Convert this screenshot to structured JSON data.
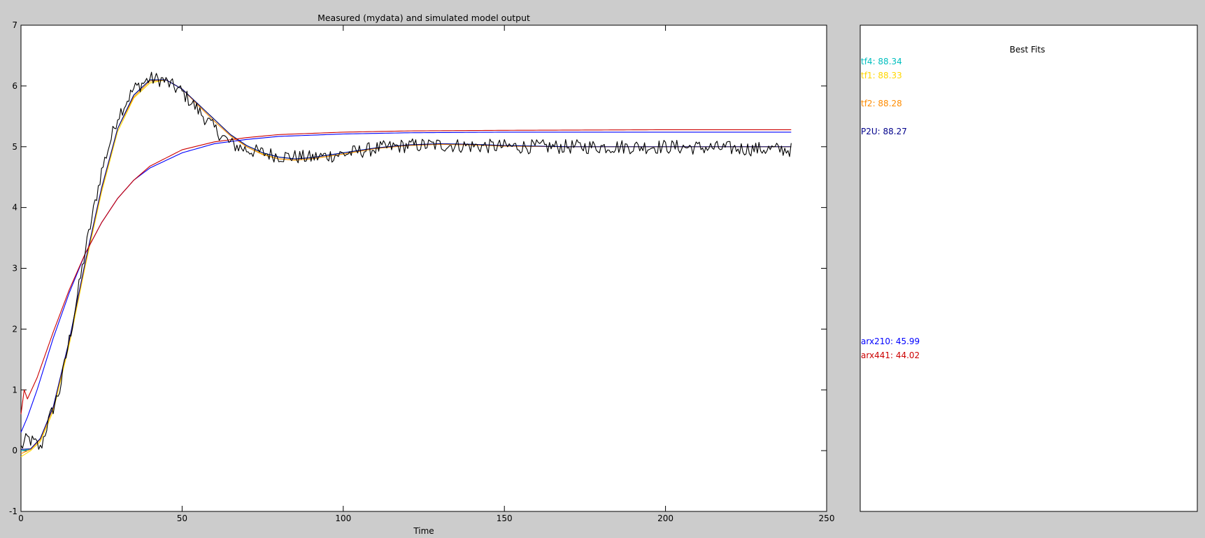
{
  "chart_data": {
    "type": "line",
    "title": "Measured (mydata) and simulated model output",
    "xlabel": "Time",
    "ylabel": "",
    "xlim": [
      0,
      250
    ],
    "ylim": [
      -1,
      7
    ],
    "x_ticks": [
      0,
      50,
      100,
      150,
      200,
      250
    ],
    "y_ticks": [
      -1,
      0,
      1,
      2,
      3,
      4,
      5,
      6,
      7
    ],
    "x_ticklabels": [
      "0",
      "50",
      "100",
      "150",
      "200",
      "250"
    ],
    "y_ticklabels": [
      "-1",
      "0",
      "1",
      "2",
      "3",
      "4",
      "5",
      "6",
      "7"
    ],
    "sample_time": 0.5,
    "t_end": 239,
    "series": [
      {
        "name": "mydata",
        "kind": "measured",
        "color": "#000000",
        "key_points": [
          [
            0,
            0.05
          ],
          [
            2,
            0.2
          ],
          [
            5,
            0.1
          ],
          [
            6,
            0.02
          ],
          [
            8,
            0.4
          ],
          [
            12,
            1.0
          ],
          [
            16,
            2.1
          ],
          [
            20,
            3.3
          ],
          [
            25,
            4.6
          ],
          [
            30,
            5.5
          ],
          [
            35,
            5.95
          ],
          [
            40,
            6.12
          ],
          [
            44,
            6.1
          ],
          [
            50,
            5.9
          ],
          [
            55,
            5.6
          ],
          [
            60,
            5.3
          ],
          [
            65,
            5.05
          ],
          [
            70,
            4.95
          ],
          [
            80,
            4.85
          ],
          [
            90,
            4.82
          ],
          [
            100,
            4.88
          ],
          [
            110,
            4.97
          ],
          [
            120,
            5.02
          ],
          [
            130,
            5.03
          ],
          [
            140,
            5.01
          ],
          [
            160,
            5.0
          ],
          [
            200,
            5.0
          ],
          [
            239,
            4.95
          ]
        ],
        "noise_amplitude": 0.12
      },
      {
        "name": "tf4",
        "fit": "88.34",
        "color": "#00bfbf",
        "key_points": [
          [
            0,
            0.0
          ],
          [
            3,
            0.02
          ],
          [
            6,
            0.2
          ],
          [
            10,
            0.7
          ],
          [
            15,
            1.8
          ],
          [
            20,
            3.1
          ],
          [
            25,
            4.3
          ],
          [
            30,
            5.3
          ],
          [
            35,
            5.85
          ],
          [
            40,
            6.1
          ],
          [
            45,
            6.1
          ],
          [
            50,
            5.95
          ],
          [
            55,
            5.7
          ],
          [
            60,
            5.45
          ],
          [
            65,
            5.2
          ],
          [
            70,
            5.02
          ],
          [
            75,
            4.9
          ],
          [
            80,
            4.83
          ],
          [
            85,
            4.8
          ],
          [
            90,
            4.82
          ],
          [
            100,
            4.9
          ],
          [
            110,
            4.98
          ],
          [
            120,
            5.03
          ],
          [
            130,
            5.05
          ],
          [
            140,
            5.04
          ],
          [
            150,
            5.02
          ],
          [
            170,
            5.0
          ],
          [
            200,
            5.0
          ],
          [
            239,
            5.0
          ]
        ]
      },
      {
        "name": "tf1",
        "fit": "88.33",
        "color": "#ffd700",
        "key_points": [
          [
            0,
            -0.1
          ],
          [
            3,
            0.0
          ],
          [
            6,
            0.15
          ],
          [
            10,
            0.65
          ],
          [
            15,
            1.75
          ],
          [
            20,
            3.05
          ],
          [
            25,
            4.25
          ],
          [
            30,
            5.25
          ],
          [
            35,
            5.8
          ],
          [
            40,
            6.05
          ],
          [
            45,
            6.1
          ],
          [
            50,
            5.95
          ],
          [
            55,
            5.7
          ],
          [
            60,
            5.45
          ],
          [
            65,
            5.2
          ],
          [
            70,
            5.0
          ],
          [
            75,
            4.88
          ],
          [
            80,
            4.8
          ],
          [
            85,
            4.78
          ],
          [
            90,
            4.8
          ],
          [
            100,
            4.88
          ],
          [
            110,
            4.97
          ],
          [
            120,
            5.02
          ],
          [
            130,
            5.04
          ],
          [
            140,
            5.03
          ],
          [
            150,
            5.01
          ],
          [
            170,
            5.0
          ],
          [
            200,
            5.0
          ],
          [
            239,
            5.0
          ]
        ]
      },
      {
        "name": "tf2",
        "fit": "88.28",
        "color": "#ff8c00",
        "key_points": [
          [
            0,
            -0.05
          ],
          [
            3,
            0.02
          ],
          [
            6,
            0.18
          ],
          [
            10,
            0.7
          ],
          [
            15,
            1.8
          ],
          [
            20,
            3.1
          ],
          [
            25,
            4.3
          ],
          [
            30,
            5.3
          ],
          [
            35,
            5.82
          ],
          [
            40,
            6.08
          ],
          [
            45,
            6.1
          ],
          [
            50,
            5.95
          ],
          [
            55,
            5.68
          ],
          [
            60,
            5.42
          ],
          [
            65,
            5.18
          ],
          [
            70,
            5.0
          ],
          [
            75,
            4.87
          ],
          [
            80,
            4.8
          ],
          [
            85,
            4.78
          ],
          [
            90,
            4.8
          ],
          [
            100,
            4.88
          ],
          [
            110,
            4.97
          ],
          [
            120,
            5.02
          ],
          [
            130,
            5.04
          ],
          [
            140,
            5.03
          ],
          [
            150,
            5.01
          ],
          [
            170,
            5.0
          ],
          [
            200,
            5.0
          ],
          [
            239,
            5.0
          ]
        ]
      },
      {
        "name": "P2U",
        "fit": "88.27",
        "color": "#00008b",
        "key_points": [
          [
            0,
            0.02
          ],
          [
            3,
            0.03
          ],
          [
            6,
            0.2
          ],
          [
            10,
            0.72
          ],
          [
            15,
            1.82
          ],
          [
            20,
            3.12
          ],
          [
            25,
            4.32
          ],
          [
            30,
            5.3
          ],
          [
            35,
            5.85
          ],
          [
            40,
            6.1
          ],
          [
            45,
            6.1
          ],
          [
            50,
            5.95
          ],
          [
            55,
            5.7
          ],
          [
            60,
            5.45
          ],
          [
            65,
            5.2
          ],
          [
            70,
            5.02
          ],
          [
            75,
            4.9
          ],
          [
            80,
            4.83
          ],
          [
            85,
            4.8
          ],
          [
            90,
            4.82
          ],
          [
            100,
            4.9
          ],
          [
            110,
            4.98
          ],
          [
            120,
            5.03
          ],
          [
            130,
            5.05
          ],
          [
            140,
            5.04
          ],
          [
            150,
            5.02
          ],
          [
            170,
            5.0
          ],
          [
            200,
            5.0
          ],
          [
            239,
            5.0
          ]
        ]
      },
      {
        "name": "arx210",
        "fit": "45.99",
        "color": "#0000ff",
        "key_points": [
          [
            0,
            0.3
          ],
          [
            2,
            0.55
          ],
          [
            5,
            1.0
          ],
          [
            10,
            1.85
          ],
          [
            15,
            2.6
          ],
          [
            20,
            3.25
          ],
          [
            25,
            3.75
          ],
          [
            30,
            4.15
          ],
          [
            35,
            4.45
          ],
          [
            40,
            4.65
          ],
          [
            50,
            4.9
          ],
          [
            60,
            5.05
          ],
          [
            70,
            5.12
          ],
          [
            80,
            5.17
          ],
          [
            100,
            5.21
          ],
          [
            120,
            5.23
          ],
          [
            150,
            5.24
          ],
          [
            200,
            5.24
          ],
          [
            239,
            5.24
          ]
        ]
      },
      {
        "name": "arx441",
        "fit": "44.02",
        "color": "#cc0000",
        "key_points": [
          [
            0,
            0.6
          ],
          [
            1,
            1.0
          ],
          [
            2,
            0.85
          ],
          [
            5,
            1.2
          ],
          [
            10,
            1.95
          ],
          [
            15,
            2.65
          ],
          [
            20,
            3.25
          ],
          [
            25,
            3.75
          ],
          [
            30,
            4.15
          ],
          [
            35,
            4.45
          ],
          [
            40,
            4.68
          ],
          [
            50,
            4.95
          ],
          [
            60,
            5.08
          ],
          [
            70,
            5.15
          ],
          [
            80,
            5.2
          ],
          [
            100,
            5.24
          ],
          [
            120,
            5.26
          ],
          [
            150,
            5.27
          ],
          [
            200,
            5.28
          ],
          [
            239,
            5.28
          ]
        ]
      }
    ],
    "legend": {
      "title": "Best Fits",
      "placement": "right-panel",
      "entries": [
        {
          "text": "tf4: 88.34",
          "color": "#00bfbf"
        },
        {
          "text": "tf1: 88.33",
          "color": "#ffd700"
        },
        {
          "text": "tf2: 88.28",
          "color": "#ff8c00"
        },
        {
          "text": "P2U: 88.27",
          "color": "#00008b"
        },
        {
          "text": "arx210: 45.99",
          "color": "#0000ff"
        },
        {
          "text": "arx441: 44.02",
          "color": "#cc0000"
        }
      ]
    }
  }
}
